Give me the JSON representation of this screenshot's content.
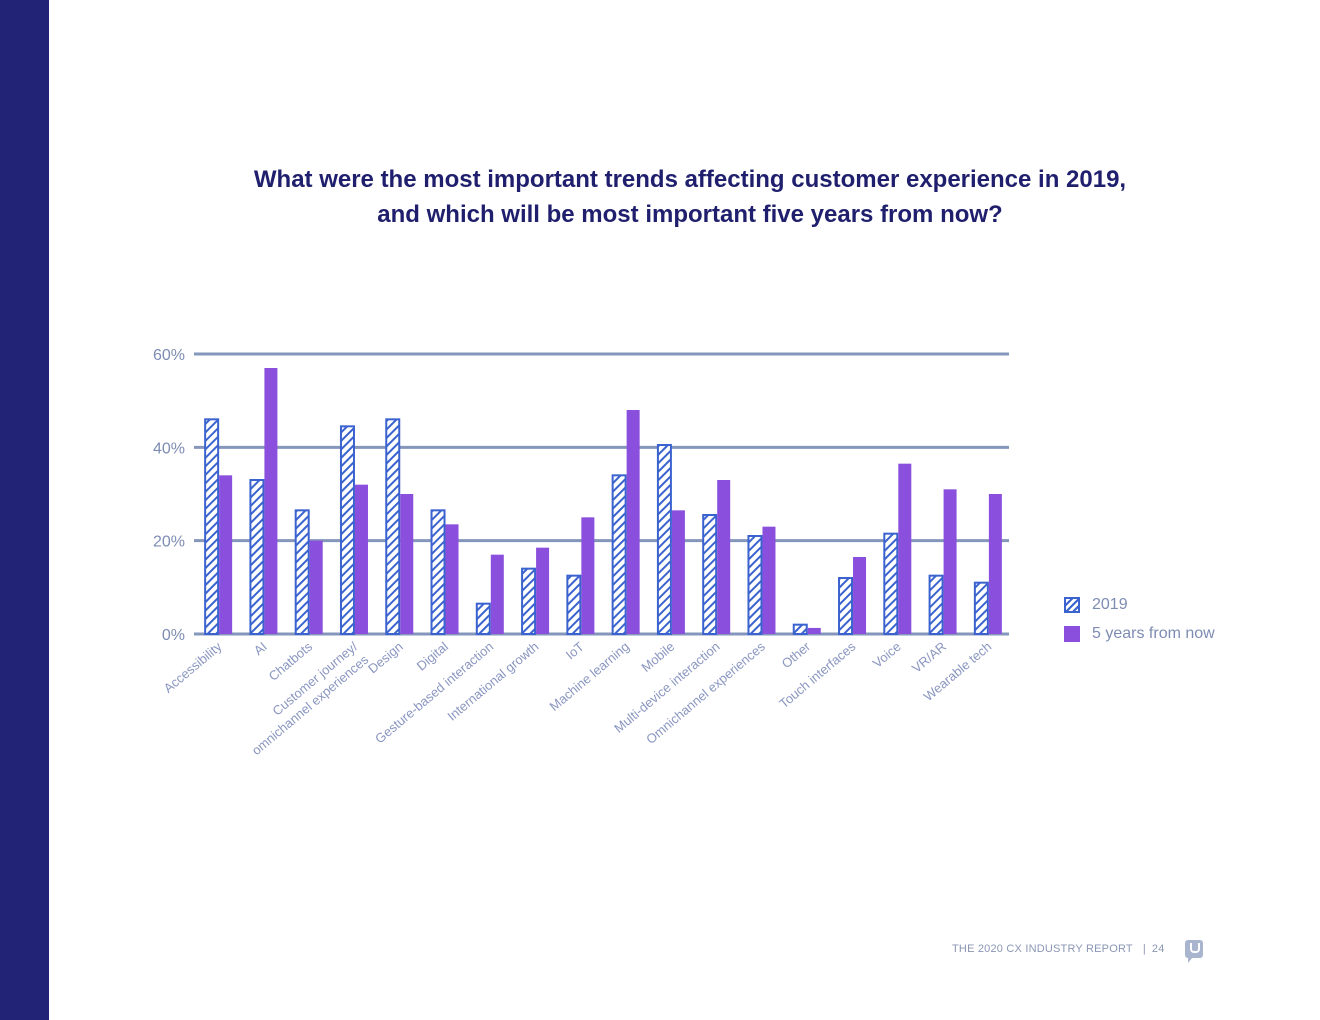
{
  "page": {
    "title_line1": "What were the most important trends affecting customer experience in 2019,",
    "title_line2": "and which will be most important five years from now?",
    "footer_text": "THE 2020 CX INDUSTRY REPORT",
    "footer_separator": "|",
    "page_number": "24",
    "logo_icon": "speech-bubble-u-logo",
    "sidebar_color": "#222277"
  },
  "colors": {
    "series_2019": "#3b63cf",
    "series_5yr": "#8a4fdc",
    "grid": "#8496bb",
    "axis_text": "#7d8cb3",
    "title": "#1f1f6e"
  },
  "legend": [
    {
      "label": "2019",
      "style": "hatched"
    },
    {
      "label": "5 years from now",
      "style": "solid"
    }
  ],
  "chart_data": {
    "type": "bar",
    "title": "What were the most important trends affecting customer experience in 2019, and which will be most important five years from now?",
    "xlabel": "",
    "ylabel": "",
    "ylim": [
      0,
      60
    ],
    "yticks": [
      0,
      20,
      40,
      60
    ],
    "ytick_labels": [
      "0%",
      "20%",
      "40%",
      "60%"
    ],
    "grid": true,
    "legend_position": "right",
    "categories": [
      "Accessibility",
      "AI",
      "Chatbots",
      "Customer journey/ omnichannel experiences",
      "Design",
      "Digital",
      "Gesture-based interaction",
      "International growth",
      "IoT",
      "Machine learning",
      "Mobile",
      "Multi-device interaction",
      "Omnichannel experiences",
      "Other",
      "Touch interfaces",
      "Voice",
      "VR/AR",
      "Wearable tech"
    ],
    "category_lines": [
      [
        "Accessibility"
      ],
      [
        "AI"
      ],
      [
        "Chatbots"
      ],
      [
        "Customer journey/",
        "omnichannel experiences"
      ],
      [
        "Design"
      ],
      [
        "Digital"
      ],
      [
        "Gesture-based interaction"
      ],
      [
        "International growth"
      ],
      [
        "IoT"
      ],
      [
        "Machine learning"
      ],
      [
        "Mobile"
      ],
      [
        "Multi-device interaction"
      ],
      [
        "Omnichannel experiences"
      ],
      [
        "Other"
      ],
      [
        "Touch interfaces"
      ],
      [
        "Voice"
      ],
      [
        "VR/AR"
      ],
      [
        "Wearable tech"
      ]
    ],
    "series": [
      {
        "name": "2019",
        "values": [
          46,
          33,
          26.5,
          44.5,
          46,
          26.5,
          6.5,
          14,
          12.5,
          34,
          40.5,
          25.5,
          21,
          2,
          12,
          21.5,
          12.5,
          11
        ]
      },
      {
        "name": "5 years from now",
        "values": [
          34,
          57,
          20,
          32,
          30,
          23.5,
          17,
          18.5,
          25,
          48,
          26.5,
          33,
          23,
          1.3,
          16.5,
          36.5,
          31,
          30
        ]
      }
    ]
  }
}
